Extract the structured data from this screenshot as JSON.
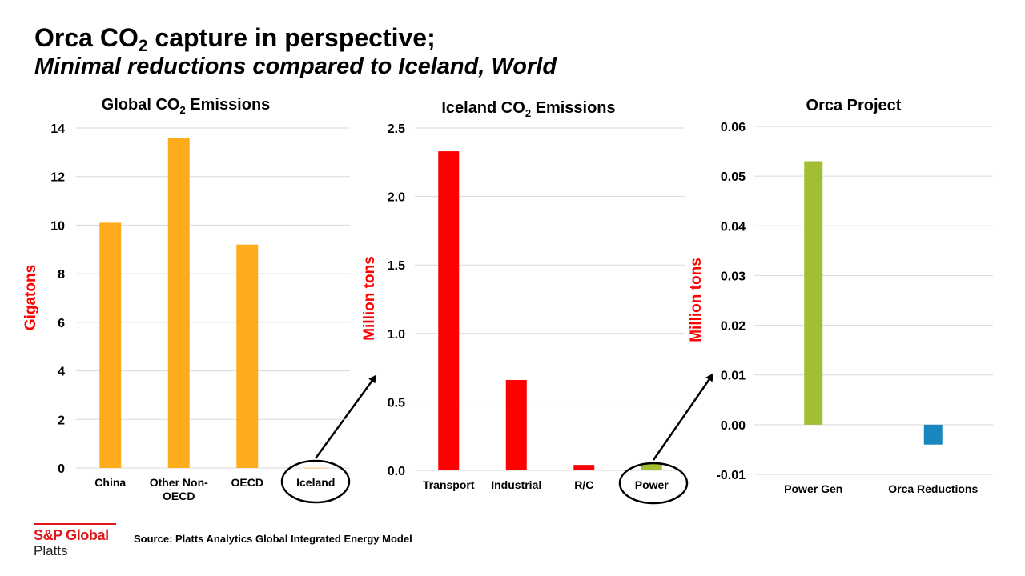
{
  "header": {
    "title_main": "Orca CO",
    "title_sub": "2",
    "title_rest": " capture in perspective;",
    "subtitle": "Minimal reductions compared to Iceland, World"
  },
  "colors": {
    "orange": "#FFAC1C",
    "red": "#FF0000",
    "green": "#A2BE32",
    "blue": "#1A86BE",
    "ylabel": "#FF0000",
    "logo": "#E0161B"
  },
  "chart_data": [
    {
      "type": "bar",
      "title": "Global CO2 Emissions",
      "title_parts": [
        "Global CO",
        "2",
        " Emissions"
      ],
      "categories": [
        "China",
        "Other Non-OECD",
        "OECD",
        "Iceland"
      ],
      "category_lines": [
        [
          "China"
        ],
        [
          "Other Non-",
          "OECD"
        ],
        [
          "OECD"
        ],
        [
          "Iceland"
        ]
      ],
      "values": [
        10.1,
        13.6,
        9.2,
        0.004
      ],
      "bar_colors": [
        "#FFAC1C",
        "#FFAC1C",
        "#FFAC1C",
        "#FFAC1C"
      ],
      "ylabel": "Gigatons",
      "ylim": [
        0,
        14
      ],
      "yticks": [
        0,
        2,
        4,
        6,
        8,
        10,
        12,
        14
      ],
      "ytick_labels": [
        "0",
        "2",
        "4",
        "6",
        "8",
        "10",
        "12",
        "14"
      ],
      "grid": true,
      "circled_category": "Iceland"
    },
    {
      "type": "bar",
      "title": "Iceland CO2 Emissions",
      "title_parts": [
        "Iceland CO",
        "2",
        " Emissions"
      ],
      "categories": [
        "Transport",
        "Industrial",
        "R/C",
        "Power"
      ],
      "category_lines": [
        [
          "Transport"
        ],
        [
          "Industrial"
        ],
        [
          "R/C"
        ],
        [
          "Power"
        ]
      ],
      "values": [
        2.33,
        0.66,
        0.04,
        0.05
      ],
      "bar_colors": [
        "#FF0000",
        "#FF0000",
        "#FF0000",
        "#A2BE32"
      ],
      "ylabel": "Million  tons",
      "ylim": [
        0,
        2.5
      ],
      "yticks": [
        0,
        0.5,
        1.0,
        1.5,
        2.0,
        2.5
      ],
      "ytick_labels": [
        "0.0",
        "0.5",
        "1.0",
        "1.5",
        "2.0",
        "2.5"
      ],
      "grid": true,
      "circled_category": "Power"
    },
    {
      "type": "bar",
      "title": "Orca Project",
      "title_parts": [
        "Orca Project",
        "",
        ""
      ],
      "categories": [
        "Power Gen",
        "Orca Reductions"
      ],
      "category_lines": [
        [
          "Power Gen"
        ],
        [
          "Orca Reductions"
        ]
      ],
      "values": [
        0.053,
        -0.004
      ],
      "bar_colors": [
        "#A2BE32",
        "#1A86BE"
      ],
      "ylabel": "Million  tons",
      "ylim": [
        -0.01,
        0.06
      ],
      "yticks": [
        -0.01,
        0,
        0.01,
        0.02,
        0.03,
        0.04,
        0.05,
        0.06
      ],
      "ytick_labels": [
        "-0.01",
        "0.00",
        "0.01",
        "0.02",
        "0.03",
        "0.04",
        "0.05",
        "0.06"
      ],
      "grid": true,
      "circled_category": ""
    }
  ],
  "footer": {
    "logo_name": "S&P Global",
    "logo_sub": "Platts",
    "source": "Source: Platts Analytics  Global Integrated Energy Model"
  }
}
